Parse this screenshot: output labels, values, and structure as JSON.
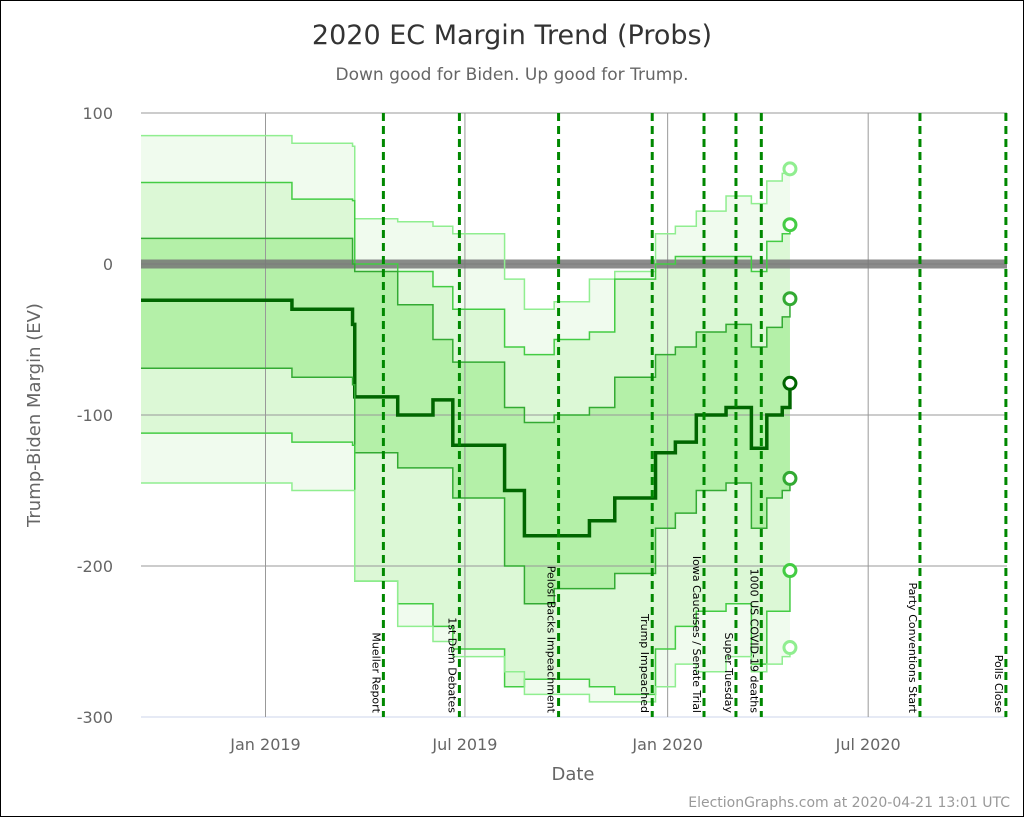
{
  "chart_data": {
    "type": "area",
    "title": "2020 EC Margin Trend (Probs)",
    "subtitle": "Down good for Biden. Up good for Trump.",
    "xlabel": "Date",
    "ylabel": "Trump-Biden Margin (EV)",
    "ylim": [
      -300,
      100
    ],
    "xlim": [
      "2018-09-10",
      "2020-11-04"
    ],
    "yticks": [
      100,
      0,
      -100,
      -200,
      -300
    ],
    "xticks": [
      {
        "date": "2019-01-01",
        "label": "Jan 2019"
      },
      {
        "date": "2019-07-01",
        "label": "Jul 2019"
      },
      {
        "date": "2020-01-01",
        "label": "Jan 2020"
      },
      {
        "date": "2020-07-01",
        "label": "Jul 2020"
      }
    ],
    "grid": true,
    "dates": [
      "2018-09-10",
      "2018-11-29",
      "2019-01-25",
      "2019-03-21",
      "2019-03-23",
      "2019-05-01",
      "2019-06-02",
      "2019-06-20",
      "2019-08-06",
      "2019-08-24",
      "2019-09-20",
      "2019-10-22",
      "2019-11-14",
      "2019-12-21",
      "2020-01-08",
      "2020-01-27",
      "2020-02-23",
      "2020-03-17",
      "2020-03-31",
      "2020-04-14",
      "2020-04-21"
    ],
    "series": [
      {
        "key": "max",
        "values": [
          85,
          85,
          80,
          78,
          30,
          28,
          25,
          20,
          -10,
          -30,
          -25,
          -10,
          -5,
          20,
          25,
          35,
          45,
          40,
          55,
          60,
          63
        ]
      },
      {
        "key": "plus2",
        "values": [
          54,
          54,
          43,
          42,
          0,
          -5,
          -15,
          -30,
          -55,
          -60,
          -50,
          -45,
          -10,
          0,
          5,
          5,
          5,
          -5,
          15,
          20,
          26
        ]
      },
      {
        "key": "plus1",
        "values": [
          17,
          17,
          17,
          0,
          -5,
          -27,
          -50,
          -65,
          -95,
          -105,
          -100,
          -95,
          -75,
          -60,
          -55,
          -45,
          -40,
          -55,
          -42,
          -35,
          -23
        ]
      },
      {
        "key": "median",
        "values": [
          -24,
          -24,
          -30,
          -40,
          -88,
          -100,
          -90,
          -120,
          -150,
          -180,
          -180,
          -170,
          -155,
          -125,
          -118,
          -100,
          -95,
          -122,
          -100,
          -95,
          -79
        ]
      },
      {
        "key": "minus1",
        "values": [
          -69,
          -69,
          -75,
          -80,
          -125,
          -135,
          -135,
          -155,
          -200,
          -225,
          -215,
          -215,
          -205,
          -175,
          -165,
          -150,
          -145,
          -175,
          -155,
          -150,
          -142
        ]
      },
      {
        "key": "minus2",
        "values": [
          -112,
          -112,
          -118,
          -120,
          -210,
          -225,
          -240,
          -255,
          -280,
          -275,
          -275,
          -280,
          -285,
          -255,
          -240,
          -230,
          -225,
          -265,
          -230,
          -230,
          -203
        ]
      },
      {
        "key": "min",
        "values": [
          -145,
          -145,
          -150,
          -150,
          -210,
          -240,
          -250,
          -260,
          -270,
          -285,
          -285,
          -290,
          -290,
          -280,
          -265,
          -270,
          -260,
          -270,
          -265,
          -260,
          -254
        ]
      }
    ],
    "events": [
      {
        "date": "2019-04-18",
        "label": "Mueller Report"
      },
      {
        "date": "2019-06-26",
        "label": "1st Dem Debates"
      },
      {
        "date": "2019-09-24",
        "label": "Pelosi Backs Impeachment"
      },
      {
        "date": "2019-12-18",
        "label": "Trump Impeached"
      },
      {
        "date": "2020-02-03",
        "label": "Iowa Caucuses / Senate Trial"
      },
      {
        "date": "2020-03-03",
        "label": "Super Tuesday"
      },
      {
        "date": "2020-03-26",
        "label": "1000 US COVID-19 deaths"
      },
      {
        "date": "2020-08-17",
        "label": "Party Conventions Start"
      },
      {
        "date": "2020-11-03",
        "label": "Polls Close"
      }
    ],
    "colors": {
      "outer_band": "#f0fbee",
      "band2": "#dcf8d6",
      "band1": "#b4f0a8",
      "max_min": "#90ee90",
      "sigma2": "#44cc44",
      "sigma1": "#33aa33",
      "median": "#006600",
      "event": "#008800",
      "zero": "#777777"
    }
  },
  "credit": "ElectionGraphs.com at 2020-04-21 13:01 UTC"
}
